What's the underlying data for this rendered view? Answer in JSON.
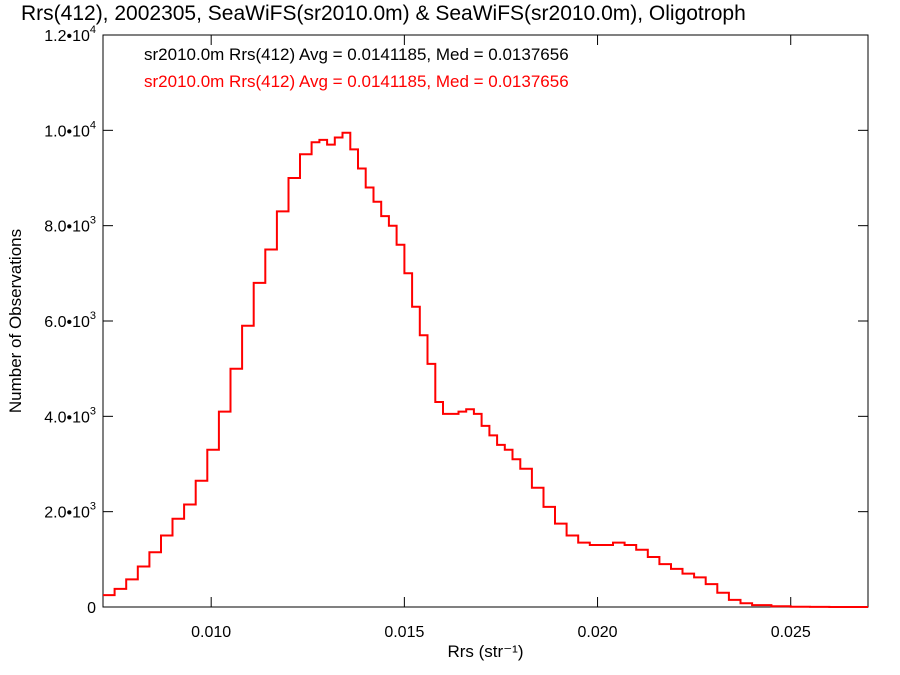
{
  "chart_data": {
    "type": "line",
    "title": "Rrs(412), 2002305, SeaWiFS(sr2010.0m) & SeaWiFS(sr2010.0m), Oligotroph",
    "xlabel": "Rrs (str⁻¹)",
    "ylabel": "Number of Observations",
    "xlim": [
      0.0072,
      0.027
    ],
    "ylim": [
      0,
      12000
    ],
    "x_ticks": [
      {
        "value": 0.01,
        "label": "0.010"
      },
      {
        "value": 0.015,
        "label": "0.015"
      },
      {
        "value": 0.02,
        "label": "0.020"
      },
      {
        "value": 0.025,
        "label": "0.025"
      }
    ],
    "y_ticks": [
      {
        "value": 0,
        "label": "0",
        "exp": ""
      },
      {
        "value": 2000,
        "label": "2.0•10",
        "exp": "3"
      },
      {
        "value": 4000,
        "label": "4.0•10",
        "exp": "3"
      },
      {
        "value": 6000,
        "label": "6.0•10",
        "exp": "3"
      },
      {
        "value": 8000,
        "label": "8.0•10",
        "exp": "3"
      },
      {
        "value": 10000,
        "label": "1.0•10",
        "exp": "4"
      },
      {
        "value": 12000,
        "label": "1.2•10",
        "exp": "4"
      }
    ],
    "annotations": [
      {
        "text": "sr2010.0m Rrs(412) Avg = 0.0141185, Med = 0.0137656",
        "color": "#000000"
      },
      {
        "text": "sr2010.0m Rrs(412) Avg = 0.0141185, Med = 0.0137656",
        "color": "#ff0000"
      }
    ],
    "grid": false,
    "step": "histogram",
    "series": [
      {
        "color": "#ff0000",
        "x": [
          0.0072,
          0.0075,
          0.0078,
          0.0081,
          0.0084,
          0.0087,
          0.009,
          0.0093,
          0.0096,
          0.0099,
          0.0102,
          0.0105,
          0.0108,
          0.0111,
          0.0114,
          0.0117,
          0.012,
          0.0123,
          0.0126,
          0.0128,
          0.013,
          0.0132,
          0.0134,
          0.0136,
          0.0138,
          0.014,
          0.0142,
          0.0144,
          0.0146,
          0.0148,
          0.015,
          0.0152,
          0.0154,
          0.0156,
          0.0158,
          0.016,
          0.0162,
          0.0164,
          0.0166,
          0.0168,
          0.017,
          0.0172,
          0.0174,
          0.0176,
          0.0178,
          0.018,
          0.0183,
          0.0186,
          0.0189,
          0.0192,
          0.0195,
          0.0198,
          0.0201,
          0.0204,
          0.0207,
          0.021,
          0.0213,
          0.0216,
          0.0219,
          0.0222,
          0.0225,
          0.0228,
          0.0231,
          0.0234,
          0.0237,
          0.024,
          0.0245,
          0.025,
          0.0255,
          0.026,
          0.0265,
          0.027
        ],
        "values": [
          250,
          380,
          580,
          850,
          1150,
          1500,
          1850,
          2150,
          2650,
          3300,
          4100,
          5000,
          5900,
          6800,
          7500,
          8300,
          9000,
          9500,
          9750,
          9800,
          9700,
          9850,
          9950,
          9600,
          9200,
          8800,
          8500,
          8200,
          8000,
          7600,
          7000,
          6300,
          5700,
          5100,
          4300,
          4050,
          4050,
          4100,
          4150,
          4050,
          3800,
          3600,
          3400,
          3300,
          3100,
          2900,
          2500,
          2100,
          1750,
          1500,
          1350,
          1300,
          1300,
          1350,
          1300,
          1200,
          1050,
          900,
          800,
          700,
          620,
          480,
          300,
          150,
          80,
          40,
          15,
          5,
          2,
          1,
          0,
          0
        ]
      }
    ]
  }
}
